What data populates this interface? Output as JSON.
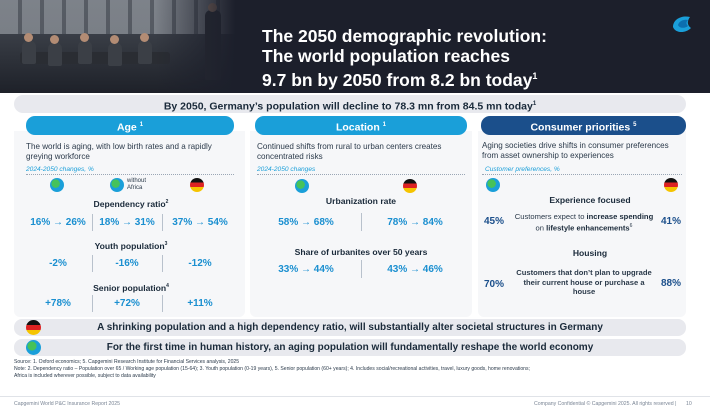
{
  "header": {
    "title_line1": "The 2050 demographic revolution:",
    "title_line2": "The world population reaches",
    "title_line3": "9.7 bn by 2050 from 8.2 bn today",
    "title_sup": "1"
  },
  "banner": {
    "text": "By 2050, Germany’s population will decline to 78.3 mn from 84.5 mn today",
    "sup": "1"
  },
  "columns": {
    "age": {
      "title": "Age",
      "sup": "1",
      "desc": "The world is aging, with low birth rates and a rapidly greying workforce",
      "note": "2024-2050 changes, %",
      "without_africa": "without Africa",
      "metrics": [
        {
          "name": "Dependency ratio",
          "sup": "2",
          "values": [
            "16% → 26%",
            "18% → 31%",
            "37% → 54%"
          ]
        },
        {
          "name": "Youth population",
          "sup": "3",
          "values": [
            "-2%",
            "-16%",
            "-12%"
          ]
        },
        {
          "name": "Senior population",
          "sup": "4",
          "values": [
            "+78%",
            "+72%",
            "+11%"
          ]
        }
      ]
    },
    "location": {
      "title": "Location",
      "sup": "1",
      "desc": "Continued shifts from rural to urban centers creates concentrated risks",
      "note": "2024-2050 changes",
      "metrics": [
        {
          "name": "Urbanization rate",
          "values": [
            "58% → 68%",
            "78% → 84%"
          ]
        },
        {
          "name": "Share of urbanites over 50 years",
          "values": [
            "33% → 44%",
            "43% → 46%"
          ]
        }
      ]
    },
    "consumer": {
      "title": "Consumer priorities",
      "sup": "5",
      "desc": "Aging societies drive shifts in consumer preferences from asset ownership to experiences",
      "note": "Customer preferences, %",
      "sections": [
        {
          "name": "Experience focused",
          "text_pre": "Customers expect to ",
          "text_bold": "increase spending",
          "text_mid": " on ",
          "text_bold2": "lifestyle enhancements",
          "sup": "6",
          "left": "45%",
          "right": "41%"
        },
        {
          "name": "Housing",
          "text": "Customers that don’t plan to upgrade their current house or purchase a house",
          "left": "70%",
          "right": "88%"
        }
      ]
    }
  },
  "bottom_bars": [
    "A shrinking population and a high dependency ratio, will substantially alter societal structures in Germany",
    "For the first time in human history, an aging population will fundamentally reshape the world economy"
  ],
  "footnotes": [
    "Source: 1. Oxford economics; 5. Capgemini Research Institute for Financial Services analysis, 2025",
    "Note: 2. Dependency ratio – Population over 65 / Working age population (15-64); 3. Youth population  (0-19 years), 5. Senior population (60+ years); 4. Includes social/recreational activities, travel, luxury goods, home renovations;",
    "Africa is included wherever possible, subject to data availability"
  ],
  "footer": {
    "left": "Capgemini World P&C Insurance Report 2025",
    "right": "Company Confidential © Capgemini 2025. All rights reserved  |",
    "page": "10"
  },
  "colors": {
    "accent": "#1a9fd9",
    "dark_accent": "#1b4f8b",
    "header_bg": "#1c1f2b"
  }
}
